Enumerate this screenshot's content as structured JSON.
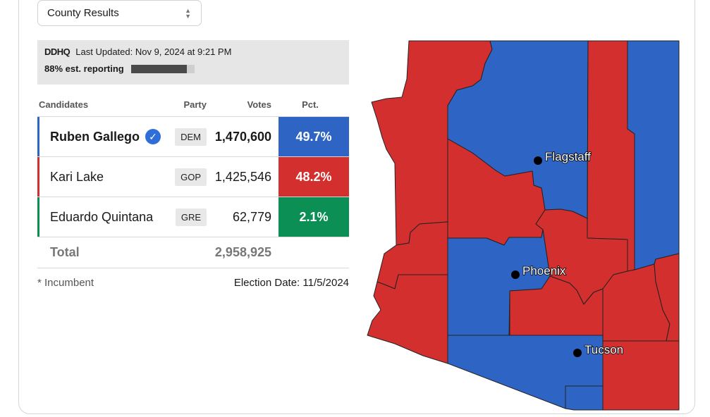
{
  "selector": {
    "value": "County Results"
  },
  "banner": {
    "logo": "DDHQ",
    "last_updated": "Last Updated: Nov 9, 2024 at 9:21 PM",
    "reporting": "88% est. reporting",
    "reporting_fraction": 0.88
  },
  "table": {
    "headers": {
      "candidates": "Candidates",
      "party": "Party",
      "votes": "Votes",
      "pct": "Pct."
    },
    "rows": [
      {
        "name": "Ruben Gallego",
        "party": "DEM",
        "votes": "1,470,600",
        "pct": "49.7%",
        "color": "#2e65c4",
        "winner": true
      },
      {
        "name": "Kari Lake",
        "party": "GOP",
        "votes": "1,425,546",
        "pct": "48.2%",
        "color": "#d42f2f",
        "winner": false
      },
      {
        "name": "Eduardo Quintana",
        "party": "GRE",
        "votes": "62,779",
        "pct": "2.1%",
        "color": "#0b8f54",
        "winner": false
      }
    ],
    "total_label": "Total",
    "total_votes": "2,958,925"
  },
  "footer": {
    "incumbent_note": "* Incumbent",
    "election_date": "Election Date: 11/5/2024"
  },
  "map": {
    "colors": {
      "dem": "#2e65c4",
      "gop": "#d42f2f",
      "border": "#222222"
    },
    "cities": [
      "Flagstaff",
      "Phoenix",
      "Tucson"
    ]
  }
}
